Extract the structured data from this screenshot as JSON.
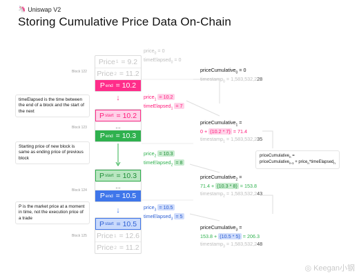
{
  "header": {
    "brand": "Uniswap V2",
    "title": "Storing Cumulative Price Data On-Chain"
  },
  "notes": {
    "time_elapsed": "timeElapsed is the time between the end of a block and the start of the next",
    "starting_price": "Starting price of new block is same as ending price of previous block",
    "market_price": "P is the market price at a moment in time, not the execution price of a trade"
  },
  "blocks": [
    {
      "label": "Block 122",
      "cells": [
        {
          "main": "Price",
          "sub": "1",
          "value": "= 9.2"
        },
        {
          "main": "Price",
          "sub": "2",
          "value": "= 11.2"
        },
        {
          "main": "P",
          "sub": "end",
          "value": "= 10.2"
        }
      ]
    },
    {
      "label": "Block 123",
      "cells": [
        {
          "main": "P",
          "sub": "start",
          "value": "= 10.2"
        },
        {
          "main": "...",
          "sub": "",
          "value": ""
        },
        {
          "main": "P",
          "sub": "end",
          "value": "= 10.3"
        }
      ]
    },
    {
      "label": "Block 124",
      "cells": [
        {
          "main": "P",
          "sub": "start",
          "value": "= 10.3"
        },
        {
          "main": "...",
          "sub": "",
          "value": ""
        },
        {
          "main": "P",
          "sub": "end",
          "value": "= 10.5"
        }
      ]
    },
    {
      "label": "Block 125",
      "cells": [
        {
          "main": "P",
          "sub": "start",
          "value": "= 10.5"
        },
        {
          "main": "Price",
          "sub": "1",
          "value": "= 12.6"
        },
        {
          "main": "Price",
          "sub": "2",
          "value": "= 11.2"
        }
      ]
    }
  ],
  "mid": [
    {
      "price_label": "price",
      "price_sub": "0",
      "price_value": "= 0",
      "elapsed_label": "timeElapsed",
      "elapsed_sub": "0",
      "elapsed_value": "= 0"
    },
    {
      "price_label": "price",
      "price_sub": "1",
      "price_value": "= 10.2",
      "elapsed_label": "timeElapsed",
      "elapsed_sub": "1",
      "elapsed_value": "= 7"
    },
    {
      "price_label": "price",
      "price_sub": "2",
      "price_value": "= 10.3",
      "elapsed_label": "timeElapsed",
      "elapsed_sub": "2",
      "elapsed_value": "= 8"
    },
    {
      "price_label": "price",
      "price_sub": "3",
      "price_value": "= 10.5",
      "elapsed_label": "timeElapsed",
      "elapsed_sub": "3",
      "elapsed_value": "= 5"
    }
  ],
  "cumulative": [
    {
      "label": "priceCumulative",
      "sub": "0",
      "head_suffix": " = 0",
      "formula_prefix": "",
      "formula_hl": "",
      "formula_result": "",
      "ts_label": "timestamp",
      "ts_sub": "0",
      "ts_main": " = 1,583,532,2",
      "ts_tail": "28"
    },
    {
      "label": "priceCumulative",
      "sub": "1",
      "head_suffix": " =",
      "formula_prefix": "0 + ",
      "formula_hl": "(10.2 * 7)",
      "formula_result": " = 71.4",
      "ts_label": "timestamp",
      "ts_sub": "1",
      "ts_main": " = 1,583,532,2",
      "ts_tail": "35"
    },
    {
      "label": "priceCumulative",
      "sub": "2",
      "head_suffix": " =",
      "formula_prefix": "71.4 + ",
      "formula_hl": "(10.3 * 8)",
      "formula_result": " = 153.8",
      "ts_label": "timestamp",
      "ts_sub": "2",
      "ts_main": " = 1,583,532,2",
      "ts_tail": "43"
    },
    {
      "label": "priceCumulative",
      "sub": "3",
      "head_suffix": " =",
      "formula_prefix": "153.8 + ",
      "formula_hl": "(10.5 * 5)",
      "formula_result": " = 206.3",
      "ts_label": "timestamp",
      "ts_sub": "3",
      "ts_main": " = 1,583,532,2",
      "ts_tail": "48"
    }
  ],
  "formula_box": {
    "line1_label": "priceCumulative",
    "line1_sub": "n",
    "line1_suffix": " =",
    "line2_a": "priceCumulative",
    "line2_a_sub": "n-1",
    "line2_b": " + price",
    "line2_b_sub": "n",
    "line2_c": "*timeElapsed",
    "line2_c_sub": "n"
  },
  "watermark": "Keegan小钢",
  "colors": {
    "pink": "#ff2d8a",
    "green": "#2fb14e",
    "blue": "#3f76ea"
  }
}
